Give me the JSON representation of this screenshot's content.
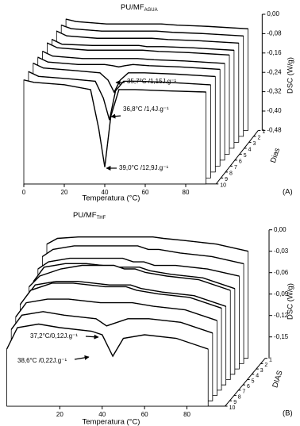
{
  "chart_data": [
    {
      "type": "waterfall",
      "title": "PU/MF",
      "title_sub": "AGUA",
      "x_label": "Temperatura (°C)",
      "y_label": "DSC (W/g)",
      "z_label": "Dias",
      "panel_label": "(A)",
      "line_color": "#000000",
      "x": [
        0,
        5,
        20,
        33,
        37,
        40,
        43,
        47,
        55,
        70,
        90
      ],
      "xlim": [
        0,
        95
      ],
      "xticks": [
        0,
        20,
        40,
        60,
        80
      ],
      "ylim": [
        -0.48,
        0
      ],
      "yticks": [
        {
          "value": 0,
          "label": "0,00"
        },
        {
          "value": -0.08,
          "label": "-0,08"
        },
        {
          "value": -0.16,
          "label": "-0,16"
        },
        {
          "value": -0.24,
          "label": "-0,24"
        },
        {
          "value": -0.32,
          "label": "-0,32"
        },
        {
          "value": -0.4,
          "label": "-0,40"
        },
        {
          "value": -0.48,
          "label": "-0,48"
        }
      ],
      "series": [
        {
          "name": "1",
          "values": [
            -0.02,
            -0.03,
            -0.04,
            -0.04,
            -0.04,
            -0.04,
            -0.04,
            -0.04,
            -0.045,
            -0.05,
            -0.06
          ]
        },
        {
          "name": "2",
          "values": [
            -0.02,
            -0.035,
            -0.045,
            -0.045,
            -0.045,
            -0.045,
            -0.045,
            -0.045,
            -0.05,
            -0.055,
            -0.065
          ]
        },
        {
          "name": "3",
          "values": [
            -0.02,
            -0.04,
            -0.05,
            -0.05,
            -0.05,
            -0.05,
            -0.05,
            -0.05,
            -0.055,
            -0.06,
            -0.07
          ]
        },
        {
          "name": "4",
          "values": [
            -0.03,
            -0.05,
            -0.055,
            -0.055,
            -0.055,
            -0.055,
            -0.055,
            -0.06,
            -0.06,
            -0.065,
            -0.075
          ]
        },
        {
          "name": "5",
          "values": [
            -0.02,
            -0.04,
            -0.05,
            -0.05,
            -0.05,
            -0.05,
            -0.05,
            -0.05,
            -0.055,
            -0.06,
            -0.07
          ]
        },
        {
          "name": "6",
          "values": [
            -0.03,
            -0.05,
            -0.06,
            -0.06,
            -0.06,
            -0.06,
            -0.06,
            -0.06,
            -0.065,
            -0.07,
            -0.08
          ]
        },
        {
          "name": "7",
          "values": [
            -0.03,
            -0.05,
            -0.06,
            -0.06,
            -0.065,
            -0.07,
            -0.065,
            -0.06,
            -0.065,
            -0.07,
            -0.08
          ]
        },
        {
          "name": "8",
          "values": [
            -0.03,
            -0.05,
            -0.06,
            -0.07,
            -0.1,
            -0.15,
            -0.1,
            -0.07,
            -0.07,
            -0.075,
            -0.085
          ]
        },
        {
          "name": "9",
          "values": [
            -0.04,
            -0.06,
            -0.07,
            -0.08,
            -0.15,
            -0.24,
            -0.12,
            -0.08,
            -0.08,
            -0.085,
            -0.095
          ]
        },
        {
          "name": "10",
          "values": [
            -0.05,
            -0.06,
            -0.07,
            -0.09,
            -0.25,
            -0.41,
            -0.2,
            -0.09,
            -0.09,
            -0.095,
            -0.1
          ]
        }
      ],
      "annotations": [
        "35,7°C /1,15J.g⁻¹",
        "36,8°C /1,4J.g⁻¹",
        "39,0°C /12,9J.g⁻¹"
      ]
    },
    {
      "type": "waterfall",
      "title": "PU/MF",
      "title_sub": "THF",
      "x_label": "Temperatura (°C)",
      "y_label": "DSC (W/g)",
      "z_label": "DIAS",
      "panel_label": "(B)",
      "line_color": "#000000",
      "x": [
        -5,
        0,
        10,
        20,
        35,
        40,
        45,
        50,
        60,
        75,
        90
      ],
      "xlim": [
        -5,
        98
      ],
      "xticks": [
        20,
        40,
        60,
        80
      ],
      "ylim": [
        -0.18,
        0
      ],
      "yticks": [
        {
          "value": 0,
          "label": "0,00"
        },
        {
          "value": -0.03,
          "label": "-0,03"
        },
        {
          "value": -0.06,
          "label": "-0,06"
        },
        {
          "value": -0.09,
          "label": "-0,09"
        },
        {
          "value": -0.12,
          "label": "-0,12"
        },
        {
          "value": -0.15,
          "label": "-0,15"
        }
      ],
      "series": [
        {
          "name": "1",
          "values": [
            -0.02,
            -0.012,
            -0.01,
            -0.01,
            -0.01,
            -0.01,
            -0.01,
            -0.012,
            -0.015,
            -0.02,
            -0.03
          ]
        },
        {
          "name": "2",
          "values": [
            -0.03,
            -0.02,
            -0.015,
            -0.015,
            -0.015,
            -0.015,
            -0.02,
            -0.02,
            -0.025,
            -0.03,
            -0.04
          ]
        },
        {
          "name": "3",
          "values": [
            -0.04,
            -0.03,
            -0.025,
            -0.025,
            -0.025,
            -0.03,
            -0.03,
            -0.035,
            -0.035,
            -0.04,
            -0.05
          ]
        },
        {
          "name": "4",
          "values": [
            -0.05,
            -0.03,
            -0.025,
            -0.025,
            -0.03,
            -0.03,
            -0.03,
            -0.035,
            -0.04,
            -0.045,
            -0.06
          ]
        },
        {
          "name": "5",
          "values": [
            -0.05,
            -0.035,
            -0.025,
            -0.02,
            -0.02,
            -0.025,
            -0.025,
            -0.03,
            -0.035,
            -0.04,
            -0.055
          ]
        },
        {
          "name": "6",
          "values": [
            -0.06,
            -0.04,
            -0.035,
            -0.035,
            -0.04,
            -0.04,
            -0.04,
            -0.045,
            -0.05,
            -0.055,
            -0.07
          ]
        },
        {
          "name": "7",
          "values": [
            -0.06,
            -0.04,
            -0.03,
            -0.03,
            -0.035,
            -0.035,
            -0.035,
            -0.04,
            -0.045,
            -0.05,
            -0.065
          ]
        },
        {
          "name": "8",
          "values": [
            -0.07,
            -0.05,
            -0.045,
            -0.045,
            -0.05,
            -0.05,
            -0.05,
            -0.05,
            -0.055,
            -0.06,
            -0.075
          ]
        },
        {
          "name": "9",
          "values": [
            -0.08,
            -0.06,
            -0.055,
            -0.06,
            -0.065,
            -0.075,
            -0.07,
            -0.065,
            -0.065,
            -0.07,
            -0.085
          ]
        },
        {
          "name": "10",
          "values": [
            -0.1,
            -0.07,
            -0.065,
            -0.07,
            -0.075,
            -0.08,
            -0.11,
            -0.085,
            -0.08,
            -0.085,
            -0.1
          ]
        }
      ],
      "annotations": [
        "37,2°C/0,12J.g⁻¹",
        "38,6°C /0,22J.g⁻¹"
      ]
    }
  ]
}
